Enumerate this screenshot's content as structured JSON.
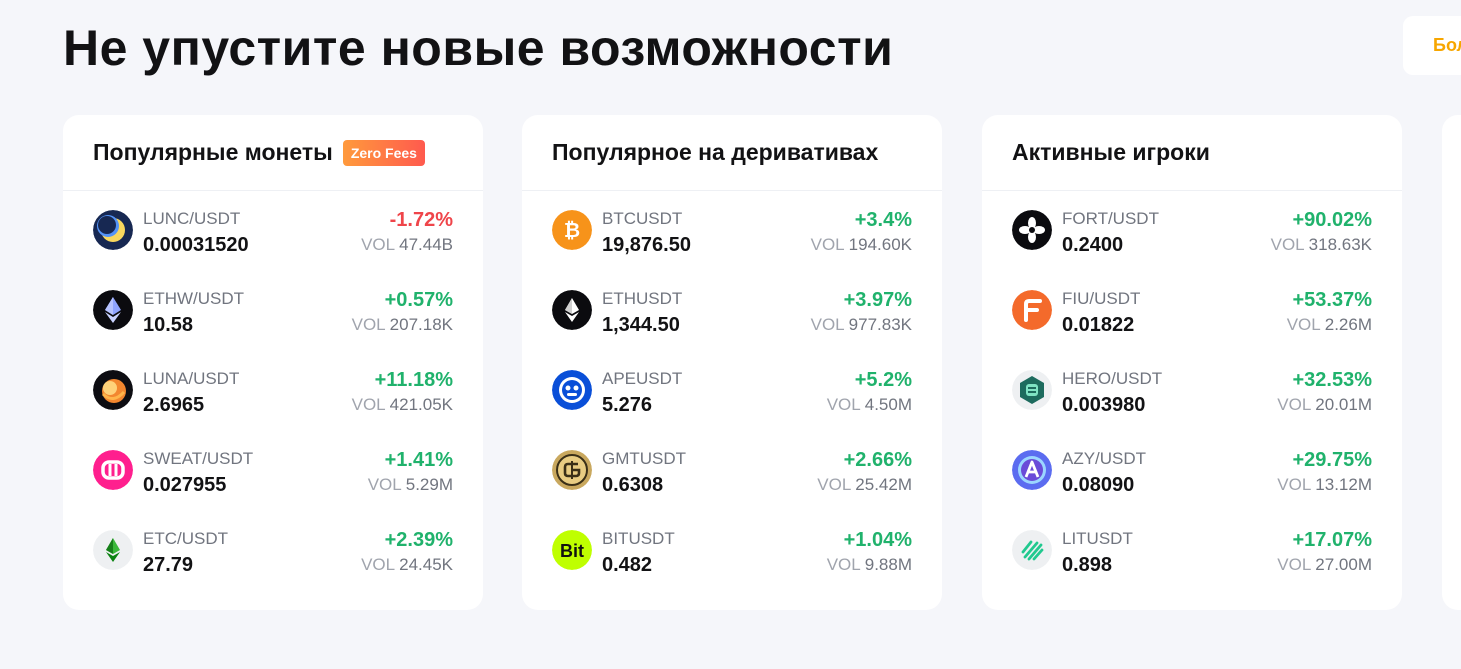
{
  "header": {
    "title": "Не упустите новые возможности",
    "more_label": "Бол"
  },
  "colors": {
    "accent": "#f7a600",
    "up": "#20b26c",
    "down": "#ef454a"
  },
  "cards": [
    {
      "title": "Популярные монеты",
      "badge": "Zero Fees",
      "vol_label": "VOL",
      "items": [
        {
          "pair": "LUNC/USDT",
          "price": "0.00031520",
          "change": "-1.72%",
          "direction": "down",
          "vol": "47.44B",
          "icon": "lunc-icon"
        },
        {
          "pair": "ETHW/USDT",
          "price": "10.58",
          "change": "+0.57%",
          "direction": "up",
          "vol": "207.18K",
          "icon": "ethw-icon"
        },
        {
          "pair": "LUNA/USDT",
          "price": "2.6965",
          "change": "+11.18%",
          "direction": "up",
          "vol": "421.05K",
          "icon": "luna-icon"
        },
        {
          "pair": "SWEAT/USDT",
          "price": "0.027955",
          "change": "+1.41%",
          "direction": "up",
          "vol": "5.29M",
          "icon": "sweat-icon"
        },
        {
          "pair": "ETC/USDT",
          "price": "27.79",
          "change": "+2.39%",
          "direction": "up",
          "vol": "24.45K",
          "icon": "etc-icon"
        }
      ]
    },
    {
      "title": "Популярное на деривативах",
      "vol_label": "VOL",
      "items": [
        {
          "pair": "BTCUSDT",
          "price": "19,876.50",
          "change": "+3.4%",
          "direction": "up",
          "vol": "194.60K",
          "icon": "btc-icon"
        },
        {
          "pair": "ETHUSDT",
          "price": "1,344.50",
          "change": "+3.97%",
          "direction": "up",
          "vol": "977.83K",
          "icon": "eth-icon"
        },
        {
          "pair": "APEUSDT",
          "price": "5.276",
          "change": "+5.2%",
          "direction": "up",
          "vol": "4.50M",
          "icon": "ape-icon"
        },
        {
          "pair": "GMTUSDT",
          "price": "0.6308",
          "change": "+2.66%",
          "direction": "up",
          "vol": "25.42M",
          "icon": "gmt-icon"
        },
        {
          "pair": "BITUSDT",
          "price": "0.482",
          "change": "+1.04%",
          "direction": "up",
          "vol": "9.88M",
          "icon": "bit-icon"
        }
      ]
    },
    {
      "title": "Активные игроки",
      "vol_label": "VOL",
      "items": [
        {
          "pair": "FORT/USDT",
          "price": "0.2400",
          "change": "+90.02%",
          "direction": "up",
          "vol": "318.63K",
          "icon": "fort-icon"
        },
        {
          "pair": "FIU/USDT",
          "price": "0.01822",
          "change": "+53.37%",
          "direction": "up",
          "vol": "2.26M",
          "icon": "fiu-icon"
        },
        {
          "pair": "HERO/USDT",
          "price": "0.003980",
          "change": "+32.53%",
          "direction": "up",
          "vol": "20.01M",
          "icon": "hero-icon"
        },
        {
          "pair": "AZY/USDT",
          "price": "0.08090",
          "change": "+29.75%",
          "direction": "up",
          "vol": "13.12M",
          "icon": "azy-icon"
        },
        {
          "pair": "LITUSDT",
          "price": "0.898",
          "change": "+17.07%",
          "direction": "up",
          "vol": "27.00M",
          "icon": "lit-icon"
        }
      ]
    }
  ]
}
